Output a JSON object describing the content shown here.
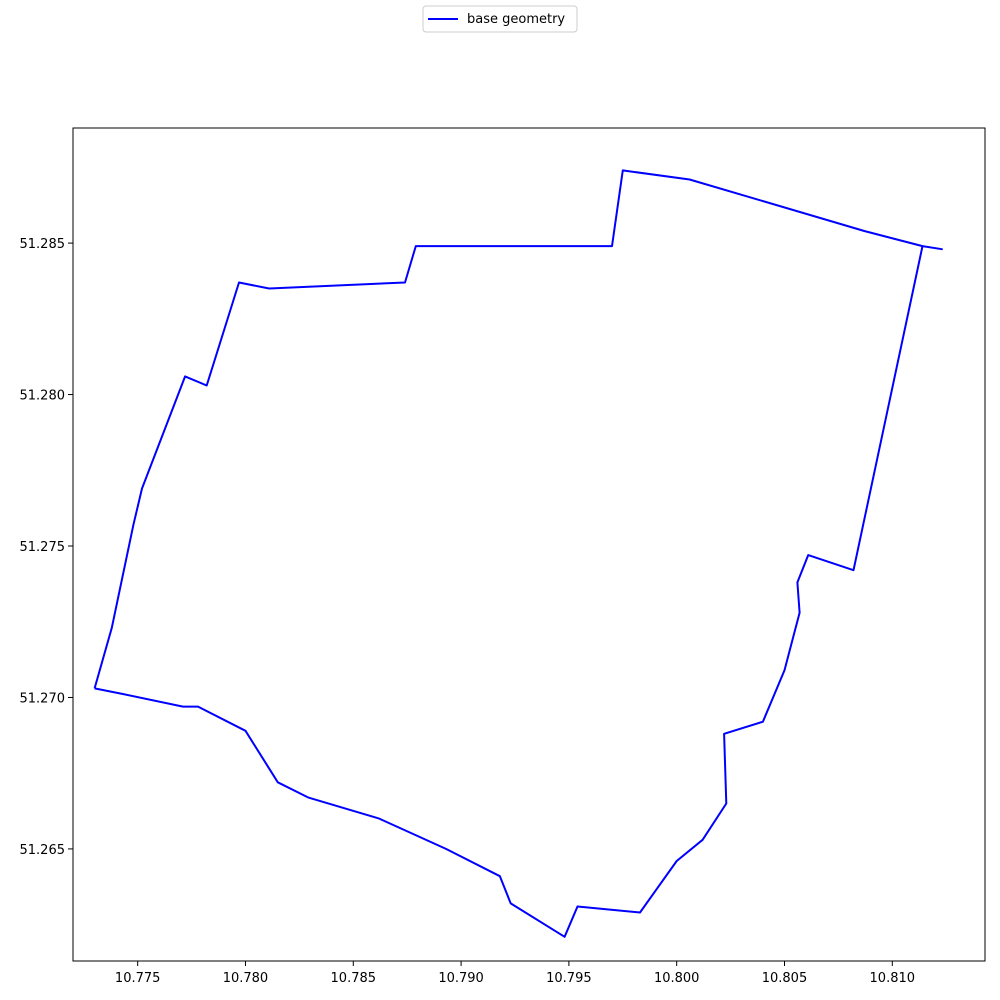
{
  "chart_data": {
    "type": "line",
    "title": "",
    "xlabel": "",
    "ylabel": "",
    "xlim": [
      10.772,
      10.8143
    ],
    "ylim": [
      51.2613,
      51.2888
    ],
    "grid": false,
    "legend_position": "top-center",
    "x_ticks": [
      10.775,
      10.78,
      10.785,
      10.79,
      10.795,
      10.8,
      10.805,
      10.81
    ],
    "x_tick_labels": [
      "10.775",
      "10.780",
      "10.785",
      "10.790",
      "10.795",
      "10.800",
      "10.805",
      "10.810"
    ],
    "y_ticks": [
      51.265,
      51.27,
      51.275,
      51.28,
      51.285
    ],
    "y_tick_labels": [
      "51.265",
      "51.270",
      "51.275",
      "51.280",
      "51.285"
    ],
    "series": [
      {
        "name": "base geometry",
        "color": "#0000ff",
        "x": [
          10.773,
          10.7744,
          10.7771,
          10.7778,
          10.78,
          10.7815,
          10.7829,
          10.7862,
          10.7893,
          10.7918,
          10.7923,
          10.7948,
          10.7954,
          10.7983,
          10.8,
          10.8012,
          10.8023,
          10.8022,
          10.804,
          10.805,
          10.8057,
          10.8056,
          10.8061,
          10.8082,
          10.8114,
          10.8123,
          10.8114,
          10.8087,
          10.8006,
          10.7975,
          10.797,
          10.7879,
          10.7874,
          10.7811,
          10.7797,
          10.7782,
          10.7772,
          10.7752,
          10.7748,
          10.7738,
          10.773
        ],
        "y": [
          51.2703,
          51.2701,
          51.2697,
          51.2697,
          51.2689,
          51.2672,
          51.2667,
          51.266,
          51.265,
          51.2641,
          51.2632,
          51.2621,
          51.2631,
          51.2629,
          51.2646,
          51.2653,
          51.2665,
          51.2688,
          51.2692,
          51.2709,
          51.2728,
          51.2738,
          51.2747,
          51.2742,
          51.2849,
          51.2848,
          51.2849,
          51.2854,
          51.2871,
          51.2874,
          51.2849,
          51.2849,
          51.2837,
          51.2835,
          51.2837,
          51.2803,
          51.2806,
          51.2769,
          51.2757,
          51.2723,
          51.2703
        ]
      }
    ]
  }
}
